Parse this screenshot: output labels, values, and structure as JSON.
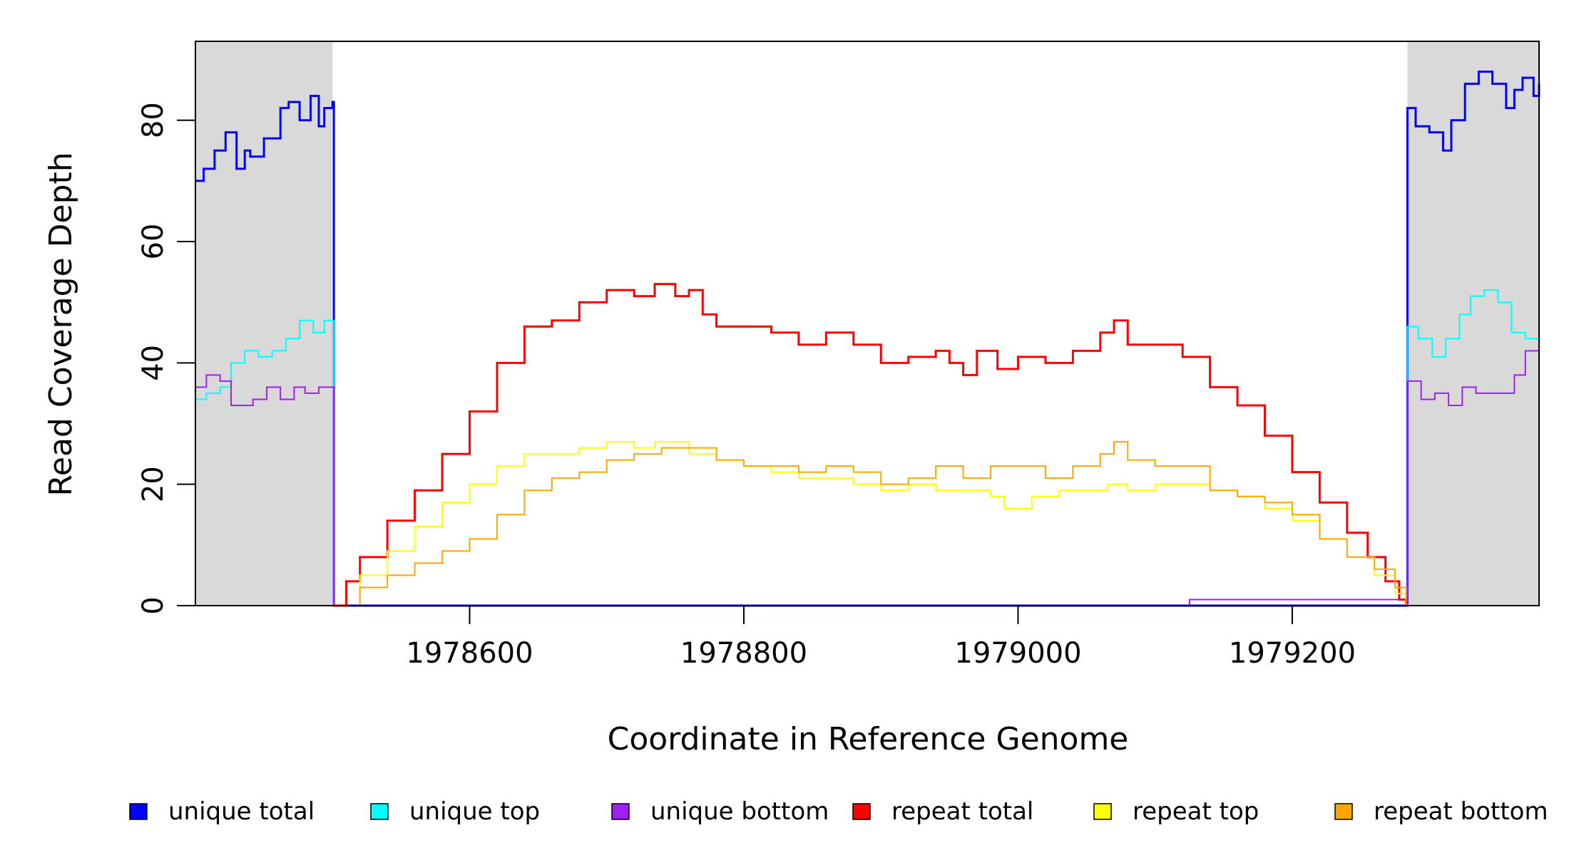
{
  "chart_data": {
    "type": "line",
    "title": "",
    "xlabel": "Coordinate in Reference Genome",
    "ylabel": "Read Coverage Depth",
    "xlim": [
      1978400,
      1979380
    ],
    "ylim": [
      0,
      93
    ],
    "x_ticks": [
      1978600,
      1978800,
      1979000,
      1979200
    ],
    "x_tick_labels": [
      "1978600",
      "1978800",
      "1979000",
      "1979200"
    ],
    "y_ticks": [
      0,
      20,
      40,
      60,
      80
    ],
    "y_tick_labels": [
      "0",
      "20",
      "40",
      "60",
      "80"
    ],
    "shaded_regions": [
      {
        "from": 1978400,
        "to": 1978500,
        "color": "#d9d9d9"
      },
      {
        "from": 1979284,
        "to": 1979380,
        "color": "#d9d9d9"
      }
    ],
    "grid": false,
    "legend_position": "bottom",
    "series": [
      {
        "name": "unique total",
        "color": "#0000ff",
        "stroke_width": 3,
        "x": [
          1978400,
          1978406,
          1978414,
          1978422,
          1978430,
          1978436,
          1978440,
          1978450,
          1978462,
          1978468,
          1978476,
          1978484,
          1978490,
          1978494,
          1978500,
          1978501,
          1979283,
          1979284,
          1979290,
          1979300,
          1979310,
          1979316,
          1979326,
          1979336,
          1979346,
          1979356,
          1979362,
          1979368,
          1979376,
          1979380
        ],
        "y": [
          70,
          72,
          75,
          78,
          72,
          75,
          74,
          77,
          82,
          83,
          80,
          84,
          79,
          82,
          83,
          0,
          0,
          82,
          79,
          78,
          75,
          80,
          86,
          88,
          86,
          82,
          85,
          87,
          84,
          86
        ]
      },
      {
        "name": "unique top",
        "color": "#00ffff",
        "stroke_width": 2,
        "x": [
          1978400,
          1978408,
          1978418,
          1978426,
          1978436,
          1978446,
          1978456,
          1978466,
          1978476,
          1978486,
          1978494,
          1978500,
          1978501,
          1979283,
          1979284,
          1979292,
          1979302,
          1979312,
          1979322,
          1979330,
          1979340,
          1979350,
          1979360,
          1979370,
          1979380
        ],
        "y": [
          34,
          35,
          36,
          40,
          42,
          41,
          42,
          44,
          47,
          45,
          47,
          47,
          0,
          0,
          46,
          44,
          41,
          44,
          48,
          51,
          52,
          50,
          45,
          44,
          43
        ]
      },
      {
        "name": "unique bottom",
        "color": "#a020f0",
        "stroke_width": 2,
        "x": [
          1978400,
          1978408,
          1978418,
          1978426,
          1978432,
          1978442,
          1978452,
          1978462,
          1978472,
          1978480,
          1978490,
          1978500,
          1978501,
          1979124,
          1979125,
          1979282,
          1979283,
          1979284,
          1979294,
          1979304,
          1979314,
          1979324,
          1979334,
          1979344,
          1979354,
          1979362,
          1979370,
          1979380
        ],
        "y": [
          36,
          38,
          37,
          33,
          33,
          34,
          36,
          34,
          36,
          35,
          36,
          36,
          0,
          0,
          1,
          1,
          0,
          37,
          34,
          35,
          33,
          36,
          35,
          35,
          35,
          38,
          42,
          43
        ]
      },
      {
        "name": "repeat total",
        "color": "#ff0000",
        "stroke_width": 3,
        "x": [
          1978500,
          1978510,
          1978520,
          1978540,
          1978560,
          1978580,
          1978600,
          1978620,
          1978640,
          1978660,
          1978680,
          1978700,
          1978720,
          1978735,
          1978750,
          1978760,
          1978770,
          1978780,
          1978800,
          1978820,
          1978840,
          1978860,
          1978880,
          1978900,
          1978920,
          1978940,
          1978950,
          1978960,
          1978970,
          1978985,
          1979000,
          1979020,
          1979040,
          1979060,
          1979070,
          1979080,
          1979100,
          1979120,
          1979140,
          1979160,
          1979180,
          1979200,
          1979220,
          1979240,
          1979255,
          1979268,
          1979278,
          1979283
        ],
        "y": [
          0,
          4,
          8,
          14,
          19,
          25,
          32,
          40,
          46,
          47,
          50,
          52,
          51,
          53,
          51,
          52,
          48,
          46,
          46,
          45,
          43,
          45,
          43,
          40,
          41,
          42,
          40,
          38,
          42,
          39,
          41,
          40,
          42,
          45,
          47,
          43,
          43,
          41,
          36,
          33,
          28,
          22,
          17,
          12,
          8,
          4,
          1,
          0
        ]
      },
      {
        "name": "repeat top",
        "color": "#ffff00",
        "stroke_width": 2,
        "x": [
          1978500,
          1978520,
          1978540,
          1978560,
          1978580,
          1978600,
          1978620,
          1978640,
          1978660,
          1978680,
          1978700,
          1978720,
          1978735,
          1978760,
          1978780,
          1978800,
          1978820,
          1978840,
          1978860,
          1978880,
          1978900,
          1978920,
          1978940,
          1978960,
          1978980,
          1978990,
          1979010,
          1979030,
          1979050,
          1979065,
          1979080,
          1979100,
          1979120,
          1979140,
          1979160,
          1979180,
          1979200,
          1979220,
          1979240,
          1979260,
          1979275,
          1979283
        ],
        "y": [
          0,
          5,
          9,
          13,
          17,
          20,
          23,
          25,
          25,
          26,
          27,
          26,
          27,
          25,
          24,
          23,
          22,
          21,
          21,
          20,
          19,
          20,
          19,
          19,
          18,
          16,
          18,
          19,
          19,
          20,
          19,
          20,
          20,
          19,
          18,
          16,
          14,
          11,
          8,
          5,
          2,
          0
        ]
      },
      {
        "name": "repeat bottom",
        "color": "#ffa500",
        "stroke_width": 2,
        "x": [
          1978500,
          1978520,
          1978540,
          1978560,
          1978580,
          1978600,
          1978620,
          1978640,
          1978660,
          1978680,
          1978700,
          1978720,
          1978740,
          1978760,
          1978780,
          1978800,
          1978820,
          1978840,
          1978860,
          1978880,
          1978900,
          1978920,
          1978940,
          1978960,
          1978980,
          1979000,
          1979020,
          1979040,
          1979060,
          1979070,
          1979080,
          1979100,
          1979120,
          1979140,
          1979160,
          1979180,
          1979200,
          1979220,
          1979240,
          1979260,
          1979275,
          1979283
        ],
        "y": [
          0,
          3,
          5,
          7,
          9,
          11,
          15,
          19,
          21,
          22,
          24,
          25,
          26,
          26,
          24,
          23,
          23,
          22,
          23,
          22,
          20,
          21,
          23,
          21,
          23,
          23,
          21,
          23,
          25,
          27,
          24,
          23,
          23,
          19,
          18,
          17,
          15,
          11,
          8,
          6,
          3,
          0
        ]
      }
    ]
  }
}
